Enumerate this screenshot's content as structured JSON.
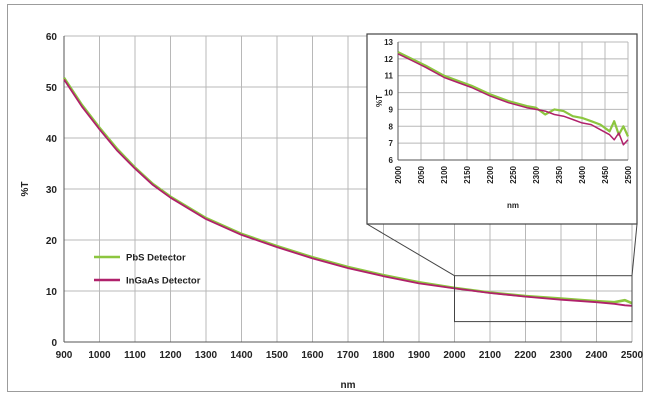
{
  "chart_data": [
    {
      "type": "line",
      "title": "",
      "xlabel": "nm",
      "ylabel": "%T",
      "xlim": [
        900,
        2500
      ],
      "ylim": [
        0,
        60
      ],
      "xticks": [
        900,
        1000,
        1100,
        1200,
        1300,
        1400,
        1500,
        1600,
        1700,
        1800,
        1900,
        2000,
        2100,
        2200,
        2300,
        2400,
        2500
      ],
      "yticks": [
        0,
        10,
        20,
        30,
        40,
        50,
        60
      ],
      "grid": true,
      "legend": "center-left",
      "series": [
        {
          "name": "PbS Detector",
          "color": "#8cc63f",
          "x": [
            900,
            950,
            1000,
            1050,
            1100,
            1150,
            1200,
            1300,
            1400,
            1500,
            1600,
            1700,
            1800,
            1900,
            2000,
            2100,
            2200,
            2300,
            2400,
            2450,
            2480,
            2500
          ],
          "y": [
            51.8,
            46.5,
            42,
            37.8,
            34.2,
            31,
            28.5,
            24.3,
            21.2,
            18.8,
            16.6,
            14.7,
            13.1,
            11.7,
            10.6,
            9.7,
            9,
            8.5,
            8,
            7.8,
            8.2,
            7.6
          ]
        },
        {
          "name": "InGaAs Detector",
          "color": "#b0216b",
          "x": [
            900,
            950,
            1000,
            1050,
            1100,
            1150,
            1200,
            1300,
            1400,
            1500,
            1600,
            1700,
            1800,
            1900,
            2000,
            2100,
            2200,
            2300,
            2400,
            2450,
            2480,
            2500
          ],
          "y": [
            51.5,
            46.2,
            41.7,
            37.5,
            34,
            30.8,
            28.3,
            24.1,
            21,
            18.6,
            16.4,
            14.5,
            12.9,
            11.5,
            10.5,
            9.6,
            8.9,
            8.3,
            7.8,
            7.5,
            7.2,
            7.1
          ]
        }
      ]
    },
    {
      "type": "line",
      "title": "",
      "xlabel": "nm",
      "ylabel": "%T",
      "xlim": [
        2000,
        2500
      ],
      "ylim": [
        6,
        13
      ],
      "xticks": [
        2000,
        2050,
        2100,
        2150,
        2200,
        2250,
        2300,
        2350,
        2400,
        2450,
        2500
      ],
      "yticks": [
        6,
        7,
        8,
        9,
        10,
        11,
        12,
        13
      ],
      "grid": true,
      "series": [
        {
          "name": "PbS Detector",
          "color": "#8cc63f",
          "x": [
            2000,
            2030,
            2060,
            2100,
            2130,
            2160,
            2200,
            2240,
            2280,
            2300,
            2320,
            2340,
            2360,
            2380,
            2400,
            2420,
            2440,
            2460,
            2470,
            2480,
            2490,
            2500
          ],
          "y": [
            12.4,
            12.0,
            11.6,
            11.0,
            10.7,
            10.4,
            9.9,
            9.5,
            9.2,
            9.1,
            8.7,
            9.0,
            8.9,
            8.6,
            8.5,
            8.3,
            8.1,
            7.7,
            8.3,
            7.5,
            8.0,
            7.4
          ]
        },
        {
          "name": "InGaAs Detector",
          "color": "#b0216b",
          "x": [
            2000,
            2030,
            2060,
            2100,
            2130,
            2160,
            2200,
            2240,
            2280,
            2300,
            2320,
            2340,
            2360,
            2380,
            2400,
            2420,
            2440,
            2460,
            2470,
            2480,
            2490,
            2500
          ],
          "y": [
            12.3,
            11.9,
            11.5,
            10.9,
            10.6,
            10.3,
            9.8,
            9.4,
            9.1,
            9.0,
            8.9,
            8.7,
            8.6,
            8.4,
            8.2,
            8.1,
            7.8,
            7.5,
            7.2,
            7.6,
            6.9,
            7.2
          ]
        }
      ]
    }
  ]
}
